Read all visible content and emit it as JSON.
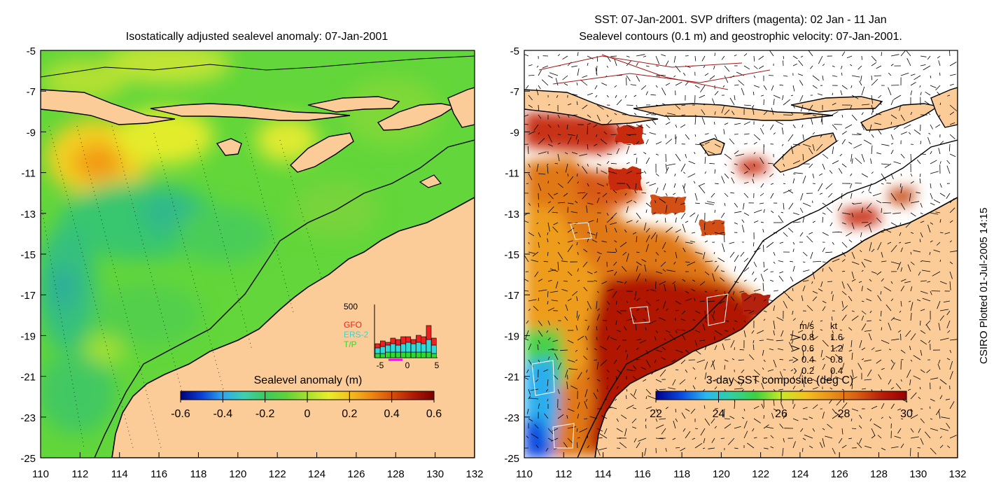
{
  "left_panel": {
    "title": "Isostatically adjusted sealevel anomaly: 07-Jan-2001",
    "y_ticks": [
      "-5",
      "-7",
      "-9",
      "-11",
      "-13",
      "-15",
      "-17",
      "-19",
      "-21",
      "-23",
      "-25"
    ],
    "x_ticks": [
      "110",
      "112",
      "114",
      "116",
      "118",
      "120",
      "122",
      "124",
      "126",
      "128",
      "130",
      "132"
    ],
    "colorbar": {
      "title": "Sealevel anomaly (m)",
      "ticks": [
        "-0.6",
        "-0.4",
        "-0.2",
        "0",
        "0.2",
        "0.4",
        "0.6"
      ],
      "colors": [
        "#00007a",
        "#0a3fd6",
        "#2ea6ee",
        "#3fd0b0",
        "#3ec85c",
        "#5fd23a",
        "#a6e030",
        "#e8ee2a",
        "#f4c01e",
        "#ee8a12",
        "#d8500a",
        "#b01c04",
        "#7a0000"
      ]
    },
    "inset_histogram": {
      "y_top_label": "500",
      "x_labels": [
        "-5",
        "0",
        "5"
      ],
      "legend": [
        {
          "label": "GFO",
          "color": "#ee2020"
        },
        {
          "label": "ERS-2",
          "color": "#30d8d8"
        },
        {
          "label": "T/P",
          "color": "#30d830"
        }
      ]
    },
    "colors": {
      "land": "#fccc98",
      "sea_base": "#62d63a",
      "coast": "#000000"
    }
  },
  "right_panel": {
    "title_line1": "SST: 07-Jan-2001. SVP drifters (magenta): 02 Jan - 11 Jan",
    "title_line2": "Sealevel contours (0.1 m) and geostrophic velocity: 07-Jan-2001.",
    "y_ticks": [
      "-5",
      "-7",
      "-9",
      "-11",
      "-13",
      "-15",
      "-17",
      "-19",
      "-21",
      "-23",
      "-25"
    ],
    "x_ticks": [
      "110",
      "112",
      "114",
      "116",
      "118",
      "120",
      "122",
      "124",
      "126",
      "128",
      "130",
      "132"
    ],
    "colorbar": {
      "title": "3-day SST composite (deg C)",
      "ticks": [
        "22",
        "24",
        "26",
        "28",
        "30"
      ],
      "colors": [
        "#00008a",
        "#0a48e0",
        "#2ab8ee",
        "#30d0a0",
        "#40d040",
        "#c8e828",
        "#f4c020",
        "#e8901a",
        "#d86012",
        "#b82008",
        "#9a0000"
      ]
    },
    "velocity_legend": {
      "header_ms": "m/s",
      "header_kt": "kt",
      "rows": [
        {
          "ms": "0.8",
          "kt": "1.6"
        },
        {
          "ms": "0.6",
          "kt": "1.2"
        },
        {
          "ms": "0.4",
          "kt": "0.8"
        },
        {
          "ms": "0.2",
          "kt": "0.4"
        }
      ]
    }
  },
  "side_note": "CSIRO Plotted 01-Jul-2005 14:15"
}
